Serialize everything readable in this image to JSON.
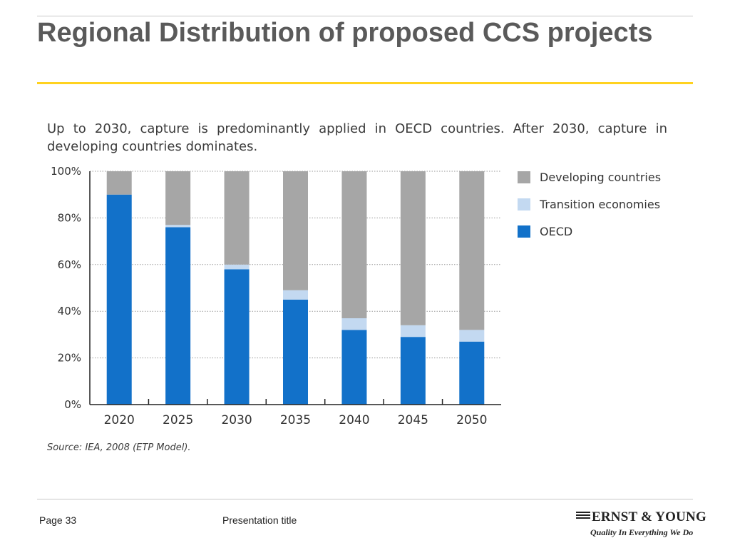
{
  "slide": {
    "title": "Regional Distribution of proposed CCS projects",
    "caption": "Up to 2030, capture is predominantly applied in OECD countries. After 2030, capture in developing countries dominates.",
    "source": "Source: IEA, 2008 (ETP Model).",
    "accent_color": "#ffd21f"
  },
  "footer": {
    "page": "Page 33",
    "presentation_title": "Presentation title",
    "logo_name": "ERNST & YOUNG",
    "logo_tagline": "Quality In Everything We Do"
  },
  "chart_data": {
    "type": "bar",
    "stacked": true,
    "categories": [
      "2020",
      "2025",
      "2030",
      "2035",
      "2040",
      "2045",
      "2050"
    ],
    "series": [
      {
        "name": "OECD",
        "color": "#1271c9",
        "values": [
          90,
          76,
          58,
          45,
          32,
          29,
          27
        ]
      },
      {
        "name": "Transition economies",
        "color": "#c3d9f1",
        "values": [
          0,
          1,
          2,
          4,
          5,
          5,
          5
        ]
      },
      {
        "name": "Developing countries",
        "color": "#a6a6a6",
        "values": [
          10,
          23,
          40,
          51,
          63,
          66,
          68
        ]
      }
    ],
    "y_ticks": [
      "0%",
      "20%",
      "40%",
      "60%",
      "80%",
      "100%"
    ],
    "ylim": [
      0,
      100
    ],
    "grid": "horizontal dotted",
    "legend": [
      "Developing countries",
      "Transition economies",
      "OECD"
    ],
    "legend_position": "right"
  }
}
